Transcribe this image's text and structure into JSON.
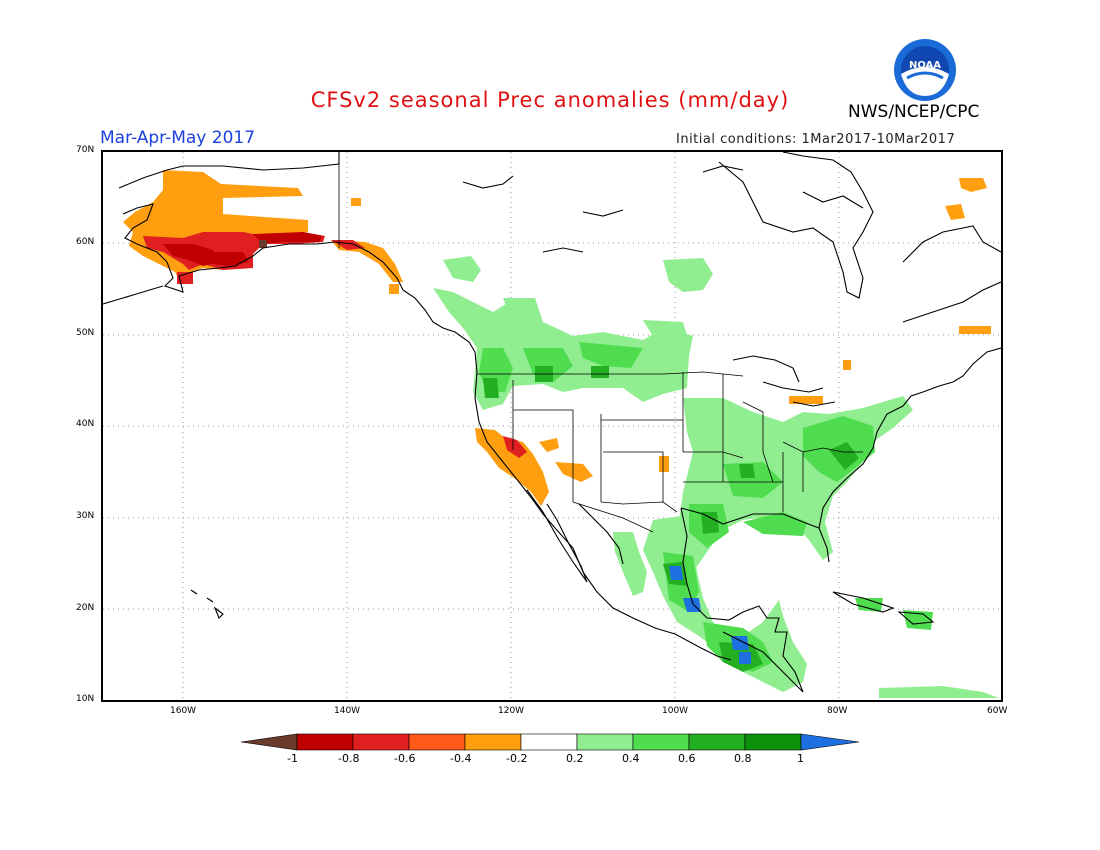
{
  "title": "CFSv2 seasonal Prec anomalies (mm/day)",
  "season": "Mar-Apr-May 2017",
  "agency": "NWS/NCEP/CPC",
  "logo_text": "NOAA",
  "initial_conditions": "Initial conditions: 1Mar2017-10Mar2017",
  "lat_labels": [
    "70N",
    "60N",
    "50N",
    "40N",
    "30N",
    "20N",
    "10N"
  ],
  "lon_labels": [
    "160W",
    "140W",
    "120W",
    "100W",
    "80W",
    "60W"
  ],
  "colorbar": {
    "labels": [
      "-1",
      "-0.8",
      "-0.6",
      "-0.4",
      "-0.2",
      "0.2",
      "0.4",
      "0.6",
      "0.8",
      "1"
    ],
    "colors": [
      "#6b3a2a",
      "#c00000",
      "#e02020",
      "#ff5a1a",
      "#ff9f10",
      "#ffffff",
      "#90ee90",
      "#4fdc4f",
      "#22b022",
      "#0a900a",
      "#1e6fe0"
    ]
  },
  "colors": {
    "title": "#e01010",
    "season": "#1c3fe0",
    "dry_strong": "#c00000",
    "dry": "#e02020",
    "dry_light": "#ff9f10",
    "wet_light": "#90ee90",
    "wet": "#4fdc4f",
    "wet_strong": "#22b022",
    "wet_max": "#1e6fe0"
  }
}
